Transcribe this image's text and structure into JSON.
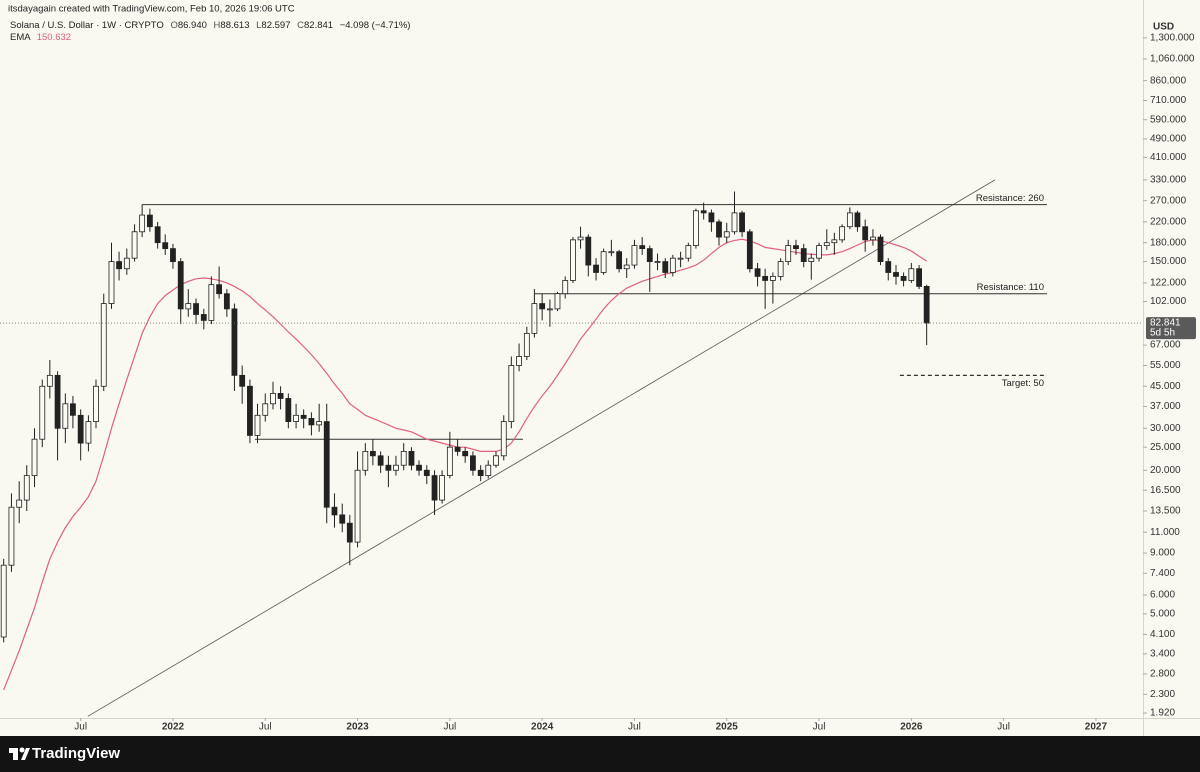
{
  "chart_data": {
    "type": "candlestick",
    "credit": "itsdayagain created with TradingView.com, Feb 10, 2026 19:06 UTC",
    "title": "Solana / U.S. Dollar · 1W · CRYPTO",
    "ohlc_legend": [
      {
        "key": "O",
        "value": "86.940"
      },
      {
        "key": "H",
        "value": "88.613"
      },
      {
        "key": "L",
        "value": "82.597"
      },
      {
        "key": "C",
        "value": "82.841"
      }
    ],
    "change": "−4.098 (−4.71%)",
    "currency": "USD",
    "countdown": "5d 5h",
    "footer_brand": "TradingView",
    "up_color": "#fbfaf3",
    "down_color": "#222222",
    "x": [
      2021.083,
      2021.125,
      2021.167,
      2021.208,
      2021.25,
      2021.292,
      2021.333,
      2021.375,
      2021.417,
      2021.458,
      2021.5,
      2021.542,
      2021.583,
      2021.625,
      2021.667,
      2021.708,
      2021.75,
      2021.792,
      2021.833,
      2021.875,
      2021.917,
      2021.958,
      2022.0,
      2022.042,
      2022.083,
      2022.125,
      2022.167,
      2022.208,
      2022.25,
      2022.292,
      2022.333,
      2022.375,
      2022.417,
      2022.458,
      2022.5,
      2022.542,
      2022.583,
      2022.625,
      2022.667,
      2022.708,
      2022.75,
      2022.792,
      2022.833,
      2022.875,
      2022.917,
      2022.958,
      2023.0,
      2023.042,
      2023.083,
      2023.125,
      2023.167,
      2023.208,
      2023.25,
      2023.292,
      2023.333,
      2023.375,
      2023.417,
      2023.458,
      2023.5,
      2023.542,
      2023.583,
      2023.625,
      2023.667,
      2023.708,
      2023.75,
      2023.792,
      2023.833,
      2023.875,
      2023.917,
      2023.958,
      2024.0,
      2024.042,
      2024.083,
      2024.125,
      2024.167,
      2024.208,
      2024.25,
      2024.292,
      2024.333,
      2024.375,
      2024.417,
      2024.458,
      2024.5,
      2024.542,
      2024.583,
      2024.625,
      2024.667,
      2024.708,
      2024.75,
      2024.792,
      2024.833,
      2024.875,
      2024.917,
      2024.958,
      2025.0,
      2025.042,
      2025.083,
      2025.125,
      2025.167,
      2025.208,
      2025.25,
      2025.292,
      2025.333,
      2025.375,
      2025.417,
      2025.458,
      2025.5,
      2025.542,
      2025.583,
      2025.625,
      2025.667,
      2025.708,
      2025.75,
      2025.792,
      2025.833,
      2025.875,
      2025.917,
      2025.958,
      2026.0,
      2026.042,
      2026.083
    ],
    "open": [
      4,
      8,
      14,
      15,
      19,
      27,
      45,
      50,
      30,
      38,
      34,
      26,
      32,
      45,
      100,
      150,
      140,
      155,
      200,
      235,
      210,
      180,
      170,
      150,
      95,
      100,
      90,
      85,
      120,
      110,
      95,
      50,
      45,
      28,
      34,
      38,
      42,
      40,
      32,
      34,
      33,
      31,
      32,
      14,
      13,
      12,
      10,
      20,
      24,
      23,
      21,
      20,
      21,
      24,
      21,
      20,
      19,
      15,
      19,
      25,
      24,
      23,
      20,
      19,
      21,
      23,
      32,
      55,
      60,
      75,
      100,
      95,
      95,
      110,
      125,
      185,
      190,
      145,
      135,
      165,
      165,
      140,
      145,
      175,
      170,
      150,
      150,
      135,
      155,
      155,
      175,
      245,
      240,
      220,
      190,
      200,
      240,
      200,
      140,
      130,
      125,
      130,
      150,
      175,
      170,
      150,
      155,
      175,
      180,
      185,
      210,
      240,
      210,
      185,
      190,
      150,
      135,
      130,
      125,
      140,
      118
    ],
    "high": [
      8.5,
      16,
      18,
      21,
      30,
      48,
      58,
      52,
      42,
      41,
      36,
      34,
      48,
      110,
      180,
      165,
      170,
      215,
      260,
      250,
      220,
      195,
      178,
      155,
      115,
      105,
      95,
      130,
      143,
      115,
      100,
      55,
      48,
      38,
      42,
      47,
      45,
      42,
      38,
      36,
      35,
      38,
      38,
      16,
      14.5,
      13,
      24,
      26,
      27,
      24,
      23,
      23,
      26,
      25,
      22,
      21,
      20,
      20,
      29,
      27,
      25,
      24,
      21,
      22,
      24,
      34,
      60,
      68,
      80,
      115,
      110,
      104,
      112,
      130,
      190,
      210,
      195,
      155,
      170,
      185,
      168,
      155,
      185,
      190,
      175,
      162,
      155,
      160,
      165,
      180,
      250,
      265,
      248,
      225,
      218,
      295,
      245,
      205,
      148,
      140,
      135,
      155,
      185,
      185,
      178,
      162,
      180,
      205,
      198,
      215,
      253,
      245,
      225,
      205,
      195,
      155,
      145,
      135,
      148,
      145,
      120
    ],
    "low": [
      3.8,
      7.5,
      12,
      13.5,
      17,
      25,
      40,
      22,
      26,
      30,
      22,
      24,
      30,
      43,
      95,
      125,
      132,
      150,
      190,
      200,
      170,
      160,
      140,
      82,
      88,
      82,
      78,
      82,
      105,
      88,
      43,
      38,
      26,
      26,
      32,
      36,
      36,
      30,
      30,
      30,
      28,
      29,
      12,
      11.5,
      11,
      8,
      9.5,
      19,
      21,
      19.5,
      17,
      19,
      20,
      20,
      19,
      17.5,
      13,
      14.5,
      18.5,
      23,
      21.5,
      19,
      18,
      18.5,
      20.5,
      22,
      30,
      52,
      58,
      72,
      85,
      80,
      93,
      105,
      122,
      170,
      130,
      125,
      132,
      158,
      135,
      128,
      140,
      160,
      112,
      138,
      128,
      130,
      142,
      150,
      170,
      225,
      200,
      175,
      180,
      195,
      190,
      135,
      118,
      95,
      100,
      125,
      145,
      160,
      142,
      126,
      150,
      168,
      160,
      180,
      205,
      200,
      165,
      175,
      145,
      125,
      120,
      118,
      122,
      115,
      67
    ],
    "close": [
      8,
      14,
      15,
      19,
      27,
      45,
      50,
      30,
      38,
      34,
      26,
      32,
      45,
      100,
      150,
      140,
      155,
      200,
      235,
      210,
      180,
      170,
      150,
      95,
      100,
      90,
      85,
      120,
      110,
      95,
      50,
      45,
      28,
      34,
      38,
      42,
      40,
      32,
      34,
      33,
      31,
      32,
      14,
      13,
      12,
      10,
      20,
      24,
      23,
      21,
      20,
      21,
      24,
      21,
      20,
      19,
      15,
      19,
      25,
      24,
      23,
      20,
      19,
      21,
      23,
      32,
      55,
      60,
      75,
      100,
      95,
      95,
      110,
      125,
      185,
      190,
      145,
      135,
      165,
      165,
      140,
      145,
      175,
      170,
      150,
      150,
      135,
      155,
      155,
      175,
      245,
      240,
      220,
      190,
      200,
      240,
      200,
      140,
      130,
      125,
      130,
      150,
      175,
      170,
      150,
      155,
      175,
      180,
      185,
      210,
      240,
      210,
      185,
      190,
      150,
      135,
      130,
      125,
      140,
      118,
      82.841
    ],
    "ema": {
      "name": "EMA",
      "color": "#e0607e",
      "values": [
        2.4,
        2.9,
        3.5,
        4.3,
        5.3,
        6.8,
        8.5,
        10,
        11.5,
        12.8,
        14,
        15.5,
        18,
        23,
        30,
        38,
        48,
        60,
        75,
        88,
        100,
        108,
        114,
        120,
        124,
        127,
        128,
        127,
        125,
        122,
        118,
        113,
        107,
        100,
        94,
        88,
        82,
        76,
        71,
        66,
        61,
        56,
        51,
        46,
        42,
        38,
        36,
        34,
        33,
        32,
        31,
        30,
        29.5,
        29,
        28,
        27,
        26.5,
        26,
        25.5,
        25,
        25,
        24.5,
        24,
        24,
        24,
        24.5,
        26,
        29,
        33,
        37,
        41,
        45,
        50,
        56,
        63,
        71,
        78,
        86,
        95,
        103,
        110,
        116,
        120,
        124,
        127,
        130,
        133,
        135,
        138,
        141,
        145,
        152,
        162,
        172,
        180,
        184,
        186,
        183,
        178,
        172,
        170,
        168,
        166,
        164,
        162,
        161,
        160,
        160,
        162,
        165,
        170,
        176,
        182,
        185,
        184,
        180,
        176,
        172,
        166,
        158,
        150.632
      ]
    },
    "annotations": [
      {
        "label": "Resistance: 260",
        "value": 260,
        "x": [
          2021.832,
          2026.735
        ],
        "style": "solid"
      },
      {
        "label": "Resistance: 110",
        "value": 110,
        "x": [
          2023.961,
          2026.735
        ],
        "style": "solid"
      },
      {
        "label": "Target: 50",
        "value": 50,
        "x": [
          2025.938,
          2026.735
        ],
        "style": "dashed"
      },
      {
        "value": 27,
        "x": [
          2022.444,
          2023.896
        ],
        "style": "solid"
      }
    ],
    "trendline": {
      "x": [
        2021.539,
        2026.453
      ],
      "y": [
        1.86,
        330
      ]
    },
    "log_scale": true,
    "xlim": [
      2021.063,
      2027.255
    ],
    "xticks": [
      {
        "value": 2021.5,
        "label": "Jul"
      },
      2022,
      {
        "value": 2022.5,
        "label": "Jul"
      },
      2023,
      {
        "value": 2023.5,
        "label": "Jul"
      },
      2024,
      {
        "value": 2024.5,
        "label": "Jul"
      },
      2025,
      {
        "value": 2025.5,
        "label": "Jul"
      },
      2026,
      {
        "value": 2026.5,
        "label": "Jul"
      },
      2027
    ],
    "ylim": [
      1.83,
      1637
    ],
    "yticks": [
      {
        "value": 1300,
        "label": "1,300.000"
      },
      {
        "value": 1060,
        "label": "1,060.000"
      },
      {
        "value": 860,
        "label": "860.000"
      },
      {
        "value": 710,
        "label": "710.000"
      },
      {
        "value": 590,
        "label": "590.000"
      },
      {
        "value": 490,
        "label": "490.000"
      },
      {
        "value": 410,
        "label": "410.000"
      },
      {
        "value": 330,
        "label": "330.000"
      },
      {
        "value": 270,
        "label": "270.000"
      },
      {
        "value": 220,
        "label": "220.000"
      },
      {
        "value": 180,
        "label": "180.000"
      },
      {
        "value": 150,
        "label": "150.000"
      },
      {
        "value": 122,
        "label": "122.000"
      },
      {
        "value": 102,
        "label": "102.000"
      },
      {
        "value": 67,
        "label": "67.000"
      },
      {
        "value": 55,
        "label": "55.000"
      },
      {
        "value": 45,
        "label": "45.000"
      },
      {
        "value": 37,
        "label": "37.000"
      },
      {
        "value": 30,
        "label": "30.000"
      },
      {
        "value": 25,
        "label": "25.000"
      },
      {
        "value": 20,
        "label": "20.000"
      },
      {
        "value": 16.5,
        "label": "16.500"
      },
      {
        "value": 13.5,
        "label": "13.500"
      },
      {
        "value": 11,
        "label": "11.000"
      },
      {
        "value": 9,
        "label": "9.000"
      },
      {
        "value": 7.4,
        "label": "7.400"
      },
      {
        "value": 6,
        "label": "6.000"
      },
      {
        "value": 5,
        "label": "5.000"
      },
      {
        "value": 4.1,
        "label": "4.100"
      },
      {
        "value": 3.4,
        "label": "3.400"
      },
      {
        "value": 2.8,
        "label": "2.800"
      },
      {
        "value": 2.3,
        "label": "2.300"
      },
      {
        "value": 1.92,
        "label": "1.920"
      }
    ]
  }
}
